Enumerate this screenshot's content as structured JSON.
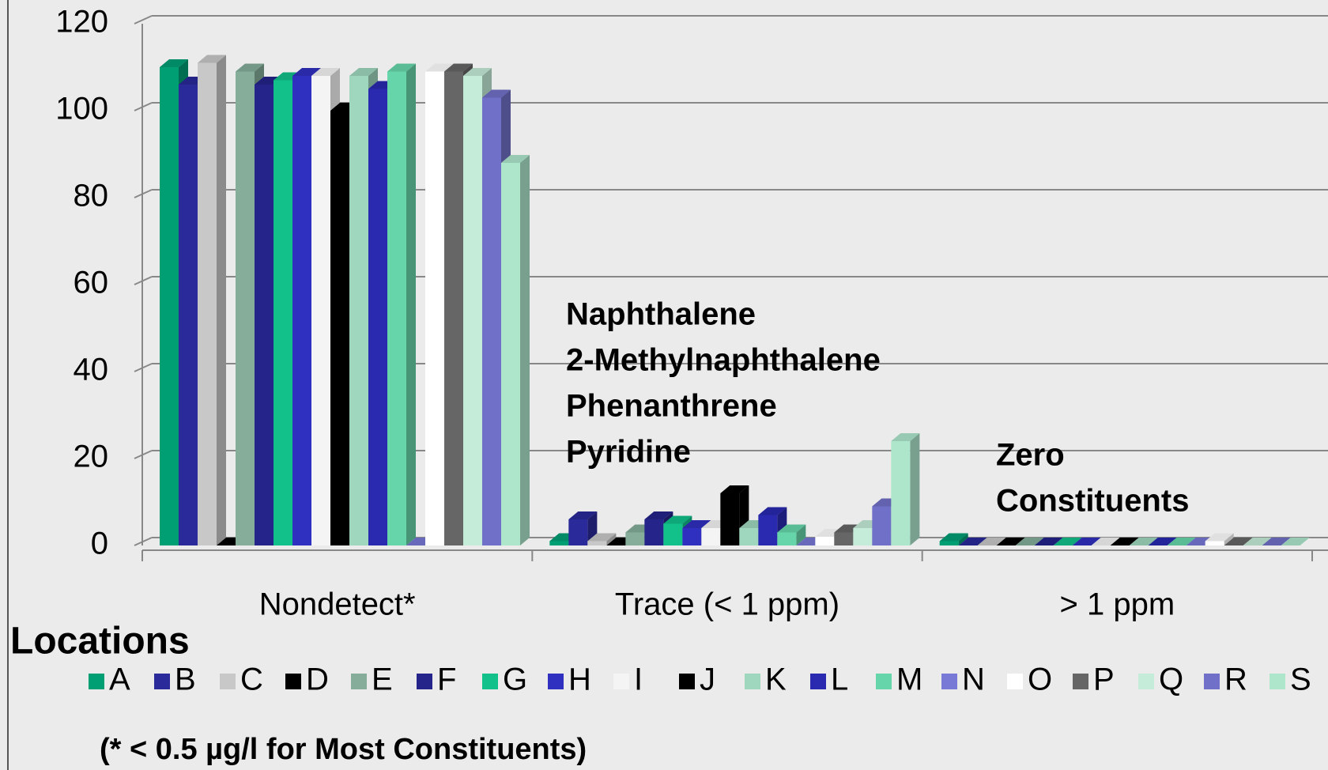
{
  "chart_data": {
    "type": "bar3d",
    "categories": [
      "Nondetect*",
      "Trace (< 1 ppm)",
      "> 1 ppm"
    ],
    "ylim": [
      0,
      120
    ],
    "yticks": [
      0,
      20,
      40,
      60,
      80,
      100,
      120
    ],
    "grid": true,
    "legend_title": "Locations",
    "annotations": [
      "Naphthalene",
      "2-Methylnaphthalene",
      "Phenanthrene",
      "Pyridine"
    ],
    "annotations2": [
      "Zero",
      "Constituents"
    ],
    "footnote": "(* < 0.5 µg/l for Most Constituents)",
    "series": [
      {
        "name": "A",
        "color": "#009e73",
        "values": [
          110,
          1,
          1
        ]
      },
      {
        "name": "B",
        "color": "#2a2a9a",
        "values": [
          106,
          6,
          0
        ]
      },
      {
        "name": "C",
        "color": "#c8c8c8",
        "values": [
          111,
          1,
          0
        ]
      },
      {
        "name": "D",
        "color": "#000000",
        "values": [
          0,
          0,
          0
        ]
      },
      {
        "name": "E",
        "color": "#85ad9a",
        "values": [
          109,
          3,
          0
        ]
      },
      {
        "name": "F",
        "color": "#24248a",
        "values": [
          106,
          6,
          0
        ]
      },
      {
        "name": "G",
        "color": "#12c08a",
        "values": [
          107,
          5,
          0
        ]
      },
      {
        "name": "H",
        "color": "#3030c0",
        "values": [
          108,
          4,
          0
        ]
      },
      {
        "name": "I",
        "color": "#f4f4f4",
        "values": [
          108,
          4,
          0
        ]
      },
      {
        "name": "J",
        "color": "#000000",
        "values": [
          100,
          12,
          0
        ]
      },
      {
        "name": "K",
        "color": "#9ed6be",
        "values": [
          108,
          4,
          0
        ]
      },
      {
        "name": "L",
        "color": "#2a2ab0",
        "values": [
          105,
          7,
          0
        ]
      },
      {
        "name": "M",
        "color": "#66d6aa",
        "values": [
          109,
          3,
          0
        ]
      },
      {
        "name": "N",
        "color": "#7878d6",
        "values": [
          0,
          0,
          0
        ]
      },
      {
        "name": "O",
        "color": "#ffffff",
        "values": [
          109,
          2,
          1
        ]
      },
      {
        "name": "P",
        "color": "#666666",
        "values": [
          109,
          3,
          0
        ]
      },
      {
        "name": "Q",
        "color": "#c4ecd8",
        "values": [
          108,
          4,
          0
        ]
      },
      {
        "name": "R",
        "color": "#7070c8",
        "values": [
          103,
          9,
          0
        ]
      },
      {
        "name": "S",
        "color": "#aee6cc",
        "values": [
          88,
          24,
          0
        ]
      }
    ]
  }
}
